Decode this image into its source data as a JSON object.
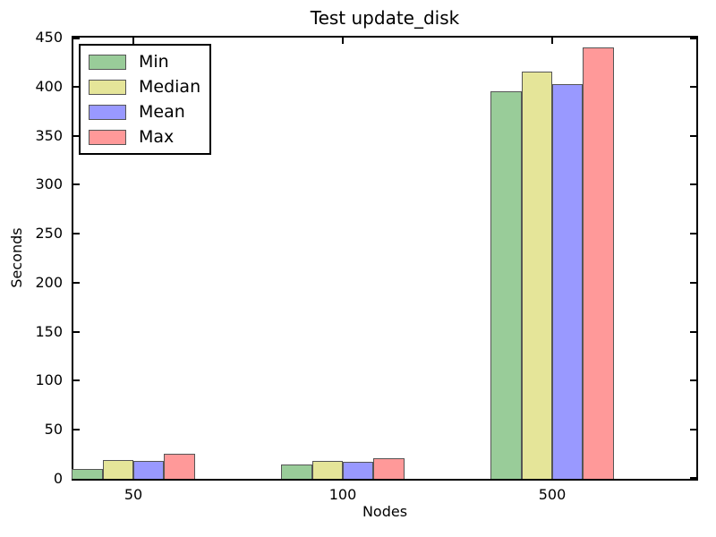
{
  "chart_data": {
    "type": "bar",
    "title": "Test update_disk",
    "xlabel": "Nodes",
    "ylabel": "Seconds",
    "categories": [
      "50",
      "100",
      "500"
    ],
    "series": [
      {
        "name": "Min",
        "color": "#99cc99",
        "values": [
          10,
          15,
          395
        ]
      },
      {
        "name": "Median",
        "color": "#e5e599",
        "values": [
          19,
          18,
          415
        ]
      },
      {
        "name": "Mean",
        "color": "#9999ff",
        "values": [
          18.5,
          17,
          403
        ]
      },
      {
        "name": "Max",
        "color": "#ff9999",
        "values": [
          26,
          21,
          440
        ]
      }
    ],
    "ylim": [
      0,
      450
    ],
    "yticks": [
      0,
      50,
      100,
      150,
      200,
      250,
      300,
      350,
      400,
      450
    ],
    "legend_position": "upper left",
    "grid": false,
    "axis_color": "#000000",
    "bar_edge_color": "#555555"
  }
}
